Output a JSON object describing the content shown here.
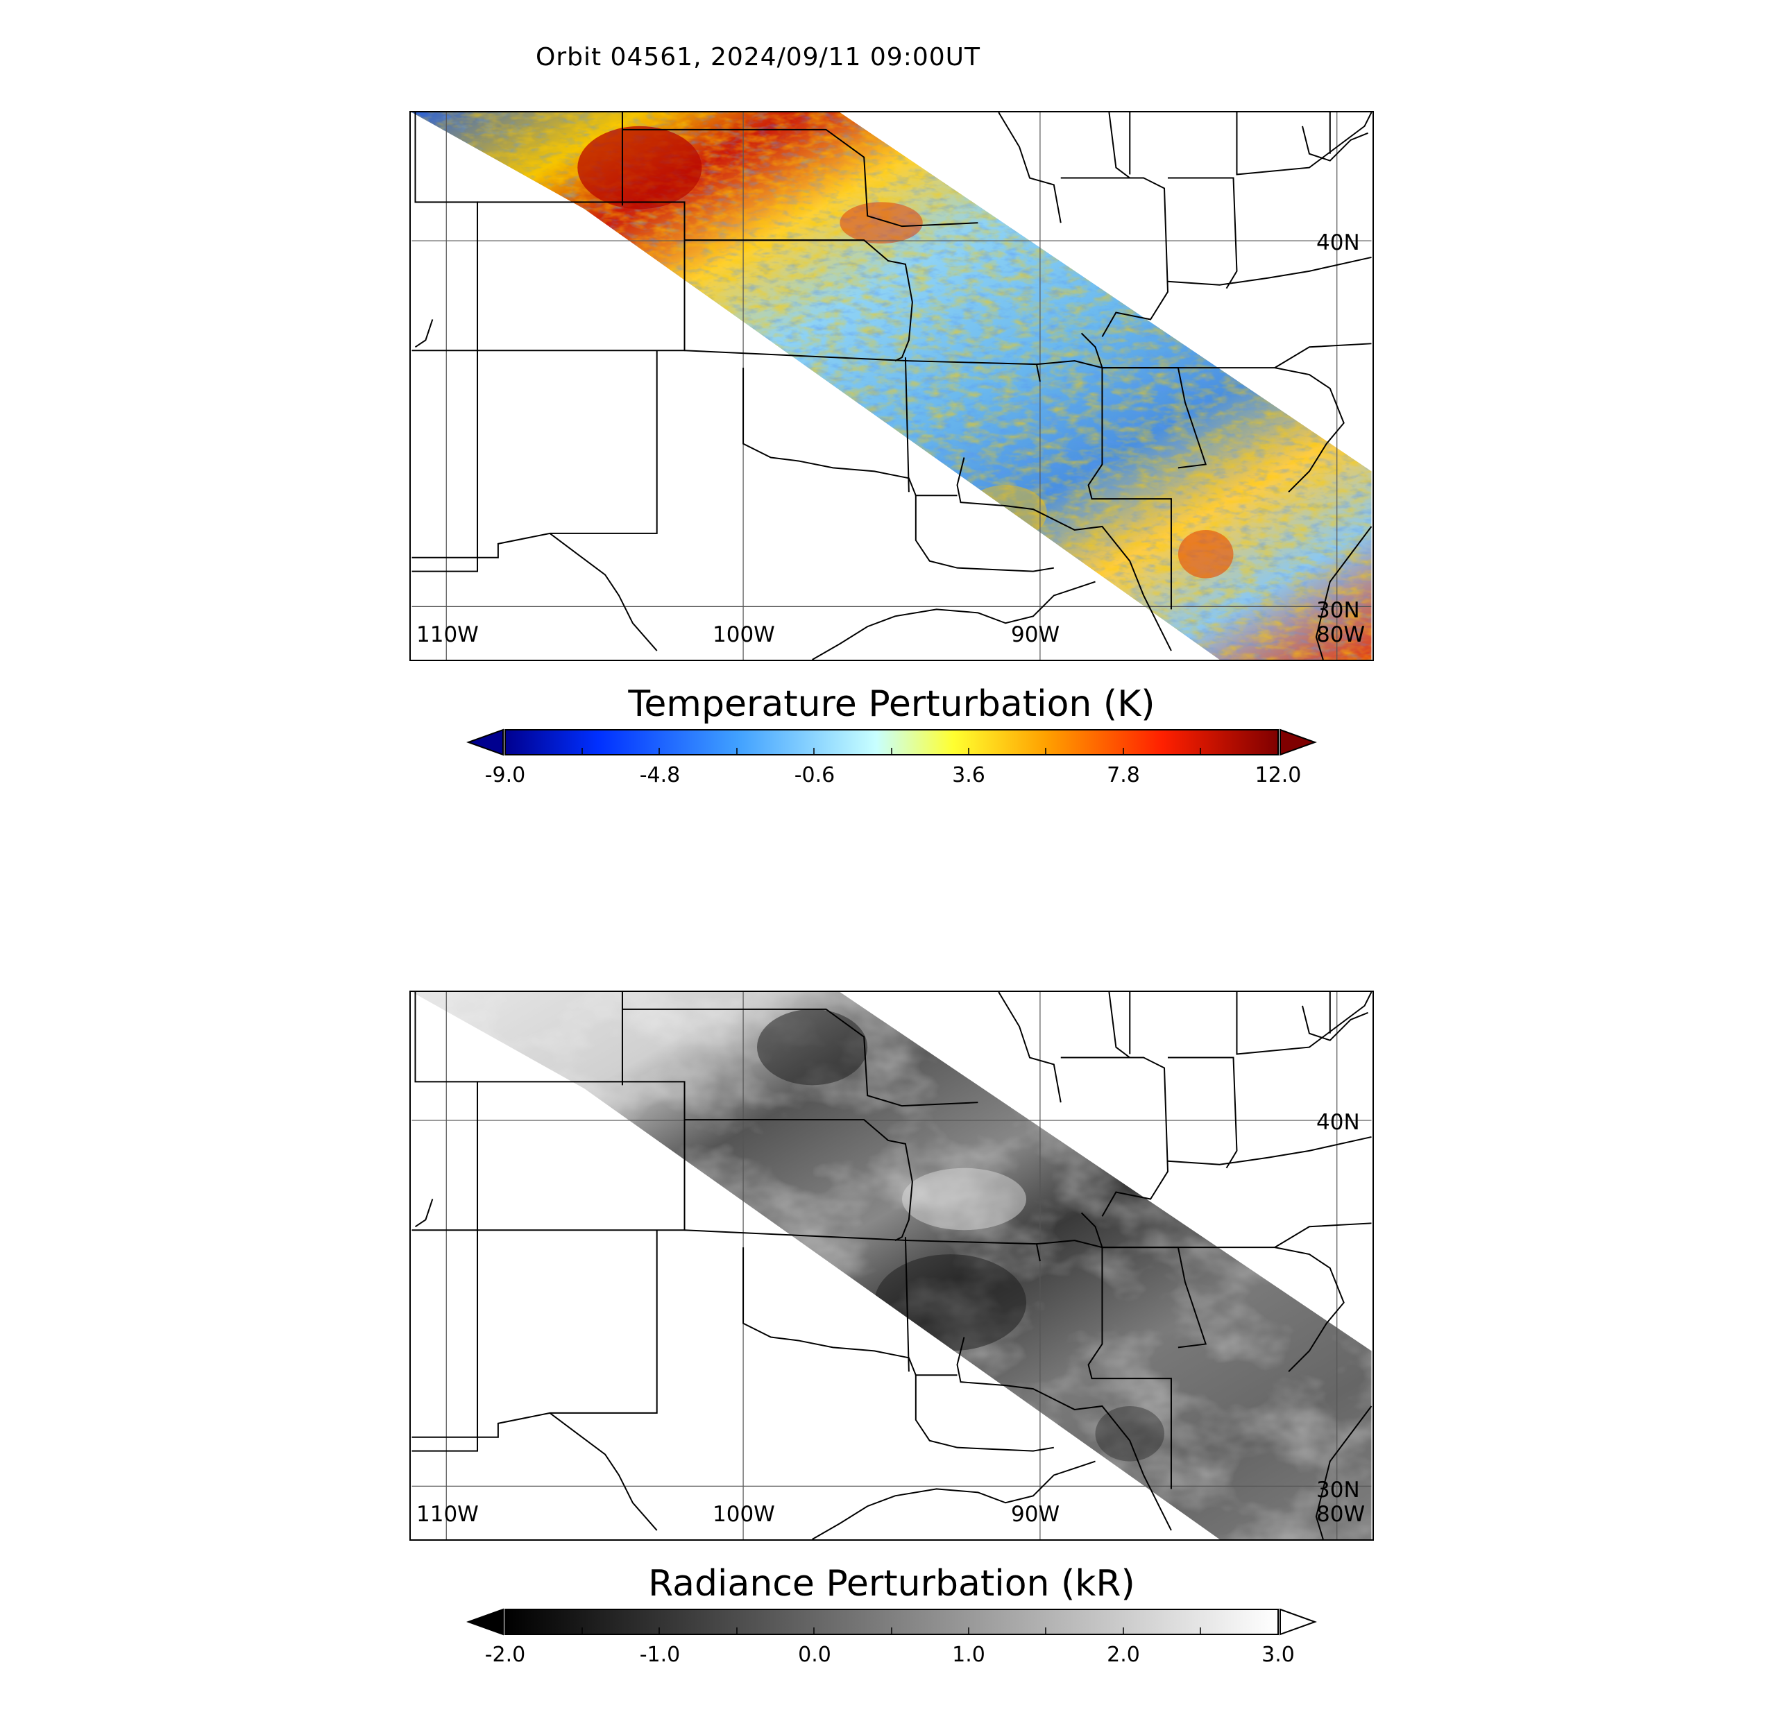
{
  "title": "Orbit 04561, 2024/09/11 09:00UT",
  "panels": [
    {
      "id": "temperature",
      "colorbar_title": "Temperature Perturbation (K)",
      "colormap": "jet",
      "range": [
        -9.0,
        12.0
      ],
      "ticks": [
        "-9.0",
        "-4.8",
        "-0.6",
        "3.6",
        "7.8",
        "12.0"
      ],
      "extend": "both"
    },
    {
      "id": "radiance",
      "colorbar_title": "Radiance Perturbation (kR)",
      "colormap": "gray",
      "range": [
        -2.0,
        3.0
      ],
      "ticks": [
        "-2.0",
        "-1.0",
        "0.0",
        "1.0",
        "2.0",
        "3.0"
      ],
      "extend": "both"
    }
  ],
  "map": {
    "lon_labels": [
      "110W",
      "100W",
      "90W",
      "80W"
    ],
    "lat_labels": [
      "40N",
      "30N"
    ]
  },
  "colors": {
    "jet_low": "#00008f",
    "jet_mid": "#c8ffff",
    "jet_high": "#7f0000"
  }
}
